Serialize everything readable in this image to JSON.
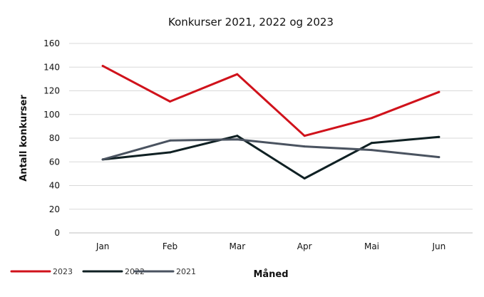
{
  "chart_data": {
    "type": "line",
    "title": "Konkurser 2021, 2022 og 2023",
    "xlabel": "Måned",
    "ylabel": "Antall konkurser",
    "categories": [
      "Jan",
      "Feb",
      "Mar",
      "Apr",
      "Mai",
      "Jun"
    ],
    "ylim": [
      0,
      160
    ],
    "yticks": [
      0,
      20,
      40,
      60,
      80,
      100,
      120,
      140,
      160
    ],
    "grid": true,
    "legend_position": "bottom-left",
    "series": [
      {
        "name": "2023",
        "color": "#d0121b",
        "values": [
          141,
          111,
          134,
          82,
          97,
          119
        ]
      },
      {
        "name": "2022",
        "color": "#0f2023",
        "values": [
          62,
          68,
          82,
          46,
          76,
          81
        ]
      },
      {
        "name": "2021",
        "color": "#4a5360",
        "values": [
          62,
          78,
          79,
          73,
          70,
          64
        ]
      }
    ]
  }
}
